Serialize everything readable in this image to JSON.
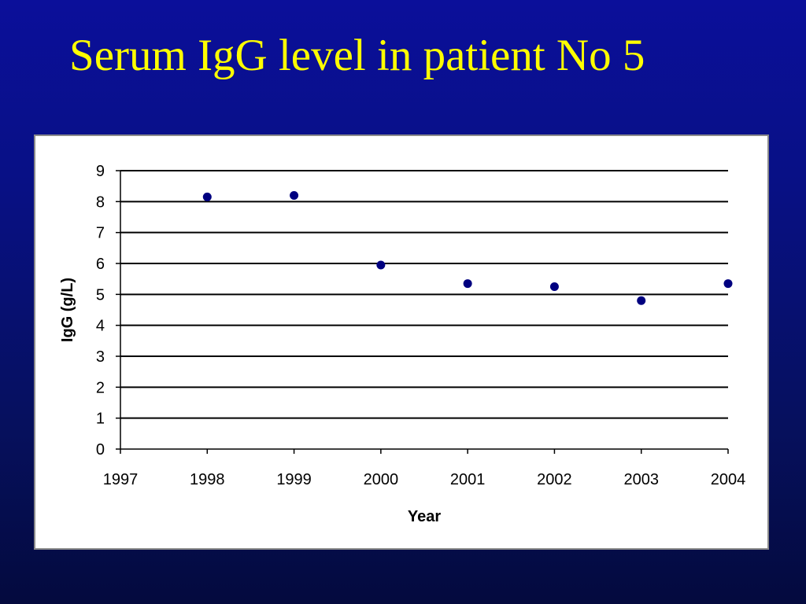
{
  "slide": {
    "title": "Serum IgG level in patient No 5",
    "background_color": "#0a0f8c",
    "title_color": "#ffff00"
  },
  "chart_data": {
    "type": "scatter",
    "title": "",
    "xlabel": "Year",
    "ylabel": "IgG (g/L)",
    "xlim": [
      1997,
      2004
    ],
    "ylim": [
      0,
      9
    ],
    "x_ticks": [
      "1997",
      "1998",
      "1999",
      "2000",
      "2001",
      "2002",
      "2003",
      "2004"
    ],
    "y_ticks": [
      "0",
      "1",
      "2",
      "3",
      "4",
      "5",
      "6",
      "7",
      "8",
      "9"
    ],
    "grid": "horizontal",
    "legend": "none",
    "marker_color": "#000080",
    "series": [
      {
        "x": [
          1998,
          1999,
          2000,
          2001,
          2002,
          2003,
          2004
        ],
        "y": [
          8.15,
          8.2,
          5.95,
          5.35,
          5.25,
          4.8,
          5.35
        ]
      }
    ]
  }
}
